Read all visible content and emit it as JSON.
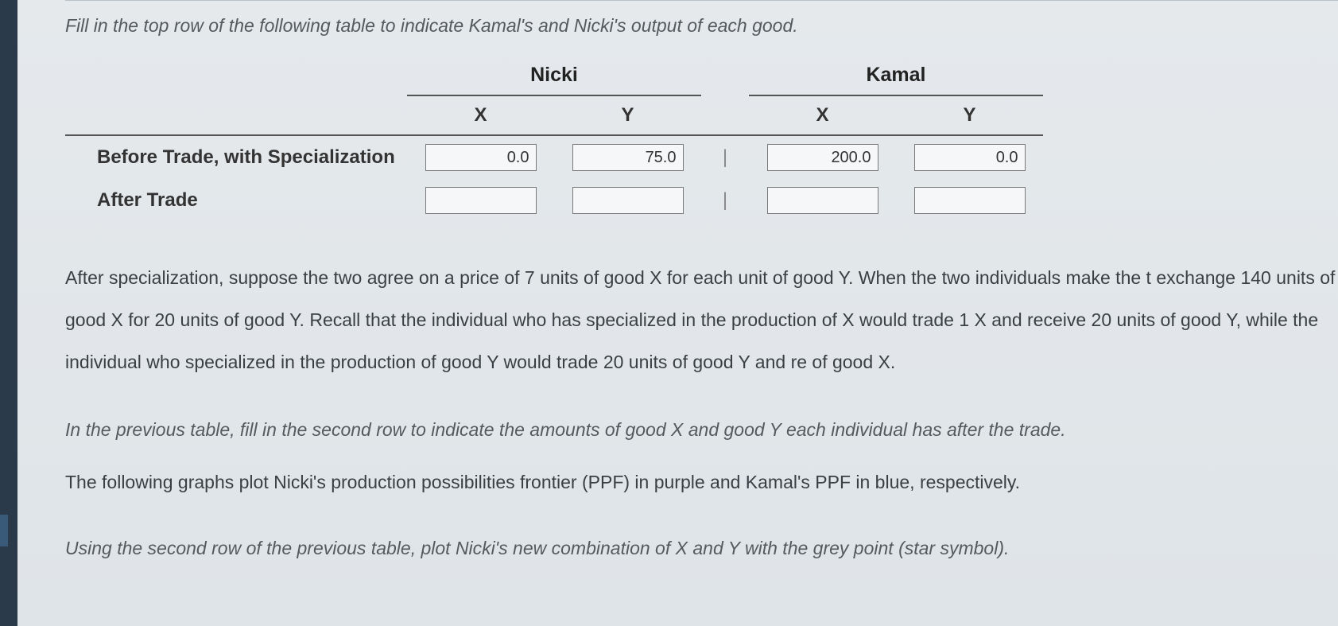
{
  "instruction_top": "Fill in the top row of the following table to indicate Kamal's and Nicki's output of each good.",
  "table": {
    "person1": "Nicki",
    "person2": "Kamal",
    "col_x": "X",
    "col_y": "Y",
    "separator": "|",
    "rows": {
      "before": {
        "label": "Before Trade, with Specialization",
        "nicki_x": "0.0",
        "nicki_y": "75.0",
        "kamal_x": "200.0",
        "kamal_y": "0.0"
      },
      "after": {
        "label": "After Trade",
        "nicki_x": "",
        "nicki_y": "",
        "kamal_x": "",
        "kamal_y": ""
      }
    }
  },
  "paragraph1": "After specialization, suppose the two agree on a price of 7 units of good X for each unit of good Y. When the two individuals make the t exchange 140 units of good X for 20 units of good Y. Recall that the individual who has specialized in the production of X would trade 1 X and receive 20 units of good Y, while the individual who specialized in the production of good Y would trade 20 units of good Y and re of good X.",
  "instruction_mid": "In the previous table, fill in the second row to indicate the amounts of good X and good Y each individual has after the trade.",
  "paragraph2": "The following graphs plot Nicki's production possibilities frontier (PPF) in purple and Kamal's PPF in blue, respectively.",
  "instruction_bottom": "Using the second row of the previous table, plot Nicki's new combination of X and Y with the grey point (star symbol).",
  "style": {
    "background": "#e8ecef",
    "textcolor": "#3a3f44",
    "italiccolor": "#555a5f",
    "inputborder": "#7a7a7a",
    "rulecolor": "#555",
    "leftbar": "#2a3a4a",
    "font_body_pt": 17,
    "font_header_pt": 19
  }
}
